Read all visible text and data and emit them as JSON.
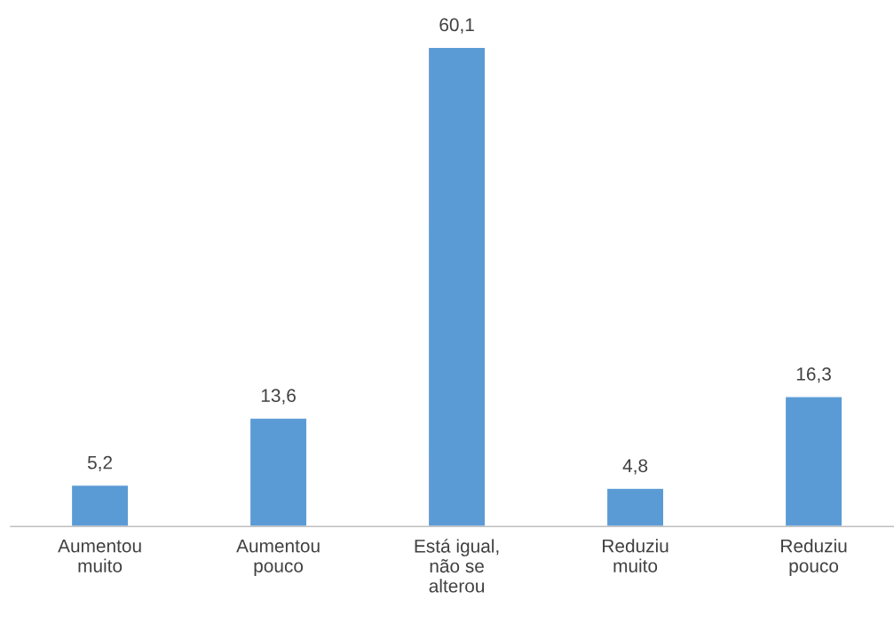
{
  "chart_data": {
    "type": "bar",
    "categories": [
      "Aumentou\nmuito",
      "Aumentou\npouco",
      "Está igual,\nnão se\nalterou",
      "Reduziu\nmuito",
      "Reduziu\npouco"
    ],
    "values": [
      5.2,
      13.6,
      60.1,
      4.8,
      16.3
    ],
    "value_labels": [
      "5,2",
      "13,6",
      "60,1",
      "4,8",
      "16,3"
    ],
    "color": "#5b9bd5",
    "grid": false,
    "legend": false
  }
}
